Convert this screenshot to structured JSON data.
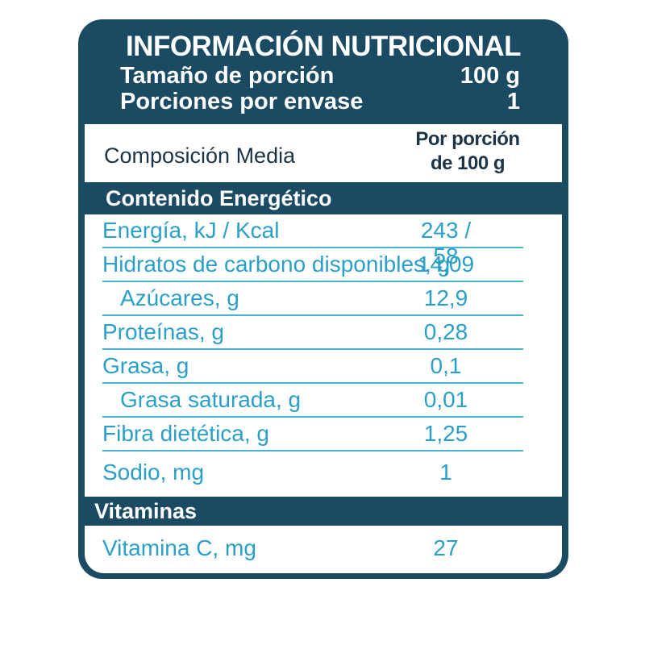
{
  "header": {
    "title": "INFORMACIÓN NUTRICIONAL",
    "serving_size_label": "Tamaño de porción",
    "serving_size_value": "100 g",
    "servings_label": "Porciones por envase",
    "servings_value": "1"
  },
  "column_header": {
    "label": "Composición Media",
    "per_portion_line1": "Por porción",
    "per_portion_line2": "de 100 g"
  },
  "sections": {
    "energy": "Contenido Energético",
    "vitamins": "Vitaminas"
  },
  "nutrients": [
    {
      "name": "Energía, kJ / Kcal",
      "value": "243 / 58"
    },
    {
      "name": "Hidratos de carbono disponibles, g",
      "value": "14,09"
    },
    {
      "name": "Azúcares, g",
      "value": "12,9"
    },
    {
      "name": "Proteínas, g",
      "value": "0,28"
    },
    {
      "name": "Grasa, g",
      "value": "0,1"
    },
    {
      "name": "Grasa saturada, g",
      "value": "0,01"
    },
    {
      "name": "Fibra dietética, g",
      "value": "1,25"
    },
    {
      "name": "Sodio, mg",
      "value": "1"
    }
  ],
  "vitamins": [
    {
      "name": "Vitamina C, mg",
      "value": "27"
    }
  ],
  "colors": {
    "panel": "#1b4a63",
    "text_blue": "#2aa0c8",
    "rule": "#4ab2d4"
  }
}
